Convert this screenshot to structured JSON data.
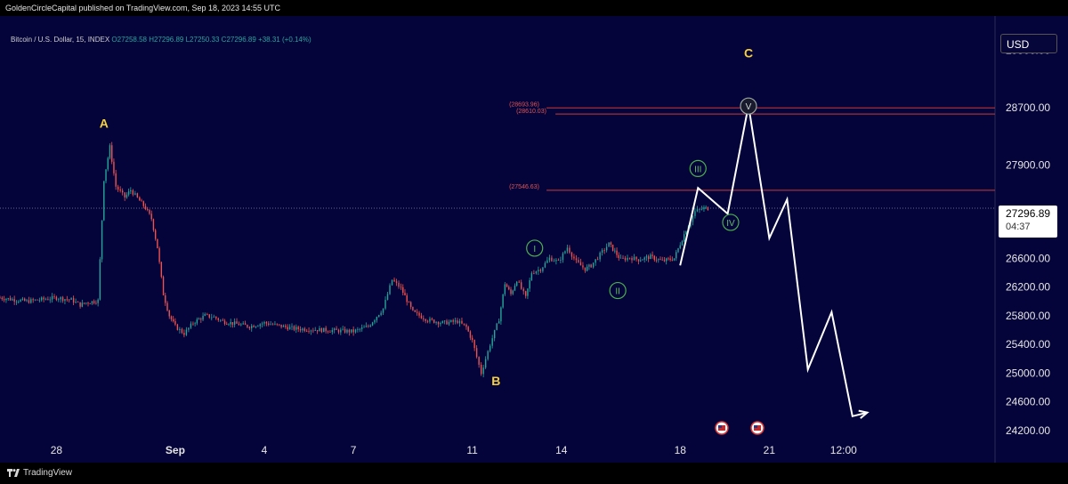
{
  "header": {
    "publisher_text": "GoldenCircleCapital published on TradingView.com, Sep 18, 2023 14:55 UTC"
  },
  "symbol": {
    "name": "Bitcoin / U.S. Dollar, 15, INDEX",
    "open": "O27258.58",
    "high": "H27296.89",
    "low": "L27250.33",
    "close": "C27296.89",
    "change": "+38.31 (+0.14%)"
  },
  "currency_button": "USD",
  "last_price": {
    "price": "27296.89",
    "countdown": "04:37"
  },
  "footer": {
    "brand": "TradingView"
  },
  "colors": {
    "background": "#04043a",
    "up": "#26a69a",
    "down": "#ef5350",
    "wave_label": "#f5d03c",
    "level_line": "#c73a3a",
    "projection": "#ffffff",
    "impulse_circle": "#4caf50"
  },
  "chart_data": {
    "type": "line",
    "title": "",
    "xlabel": "",
    "ylabel": "",
    "y_ticks": [
      24200,
      24600,
      25000,
      25400,
      25800,
      26200,
      26600,
      27900,
      28700,
      29500
    ],
    "y_tick_labels": [
      "24200.00",
      "24600.00",
      "25000.00",
      "25400.00",
      "25800.00",
      "26200.00",
      "26600.00",
      "27900.00",
      "28700.00",
      "29500.00"
    ],
    "ylim": [
      24050,
      29900
    ],
    "x_tick_labels": [
      "28",
      "Sep",
      "4",
      "7",
      "11",
      "14",
      "18",
      "21",
      "12:00"
    ],
    "x_tick_days": [
      -4,
      0,
      3,
      6,
      10,
      13,
      17,
      20,
      22.5
    ],
    "xlim": [
      -5.9,
      27.6
    ],
    "series": [
      {
        "x": [
          -5.9,
          -5,
          -4,
          -3.5,
          -3.2,
          -3,
          -2.6,
          -2.4,
          -2.2,
          -2,
          -1.7,
          -1.5,
          -1.2,
          -1,
          -0.8,
          -0.6,
          -0.4,
          -0.2,
          0,
          0.3,
          0.6,
          0.8,
          1,
          1.3,
          1.6,
          2,
          2.5,
          3,
          4,
          5,
          6,
          6.5,
          7,
          7.3,
          7.6,
          8,
          8.5,
          9,
          9.5,
          9.8,
          10,
          10.3,
          10.6,
          10.9,
          11.1,
          11.3,
          11.5,
          11.8,
          12,
          12.3,
          12.6,
          12.9,
          13.2,
          13.5,
          13.8,
          14,
          14.3,
          14.6,
          15,
          15.3,
          15.6,
          16,
          16.4,
          16.8,
          17.2,
          17.5,
          17.8,
          18
        ],
        "y": [
          26050,
          26000,
          26050,
          26020,
          25950,
          25980,
          26010,
          27700,
          28150,
          27600,
          27450,
          27550,
          27400,
          27300,
          27150,
          26750,
          26100,
          25800,
          25650,
          25550,
          25700,
          25750,
          25800,
          25780,
          25720,
          25690,
          25650,
          25700,
          25620,
          25600,
          25580,
          25650,
          25900,
          26300,
          26180,
          25850,
          25740,
          25700,
          25720,
          25640,
          25450,
          25000,
          25400,
          25750,
          26250,
          26100,
          26300,
          26050,
          26400,
          26450,
          26600,
          26550,
          26750,
          26550,
          26450,
          26500,
          26650,
          26800,
          26580,
          26610,
          26580,
          26620,
          26560,
          26600,
          27000,
          27250,
          27297,
          27297
        ]
      }
    ],
    "levels": [
      {
        "label": "(28693.96)",
        "value": 28693.96
      },
      {
        "label": "(28610.03)",
        "value": 28610.03
      },
      {
        "label": "(27546.63)",
        "value": 27546.63
      }
    ],
    "projection_path": {
      "x": [
        17,
        17.6,
        18.6,
        19.3,
        20,
        20.6,
        21.3,
        22.1,
        22.8,
        23.3
      ],
      "y": [
        26500,
        27580,
        27220,
        28730,
        26880,
        27420,
        25050,
        25850,
        24400,
        24450
      ]
    },
    "wave_labels": [
      {
        "text": "A",
        "x": -2.4,
        "y": 28420
      },
      {
        "text": "B",
        "x": 10.8,
        "y": 24830
      },
      {
        "text": "C",
        "x": 19.3,
        "y": 29400
      }
    ],
    "impulse_labels": [
      {
        "text": "I",
        "x": 12.1,
        "y": 26740
      },
      {
        "text": "II",
        "x": 14.9,
        "y": 26150
      },
      {
        "text": "III",
        "x": 17.6,
        "y": 27850
      },
      {
        "text": "IV",
        "x": 18.7,
        "y": 27100
      },
      {
        "text": "V",
        "x": 19.3,
        "y": 28720
      }
    ],
    "event_markers_x": [
      18.4,
      19.6
    ]
  }
}
